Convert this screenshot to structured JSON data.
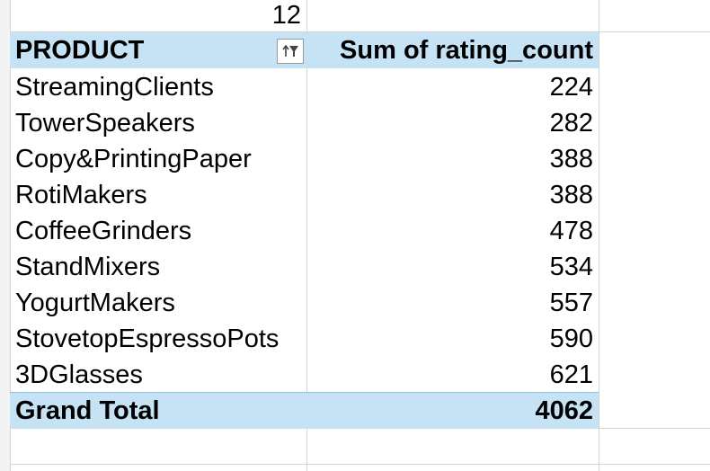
{
  "top_cell_value": "12",
  "pivot": {
    "header": {
      "row_label": "PRODUCT",
      "value_label": "Sum of rating_count",
      "filter_icon": "sort-filter-icon"
    },
    "rows": [
      {
        "product": "StreamingClients",
        "value": "224"
      },
      {
        "product": "TowerSpeakers",
        "value": "282"
      },
      {
        "product": "Copy&PrintingPaper",
        "value": "388"
      },
      {
        "product": "RotiMakers",
        "value": "388"
      },
      {
        "product": "CoffeeGrinders",
        "value": "478"
      },
      {
        "product": "StandMixers",
        "value": "534"
      },
      {
        "product": "YogurtMakers",
        "value": "557"
      },
      {
        "product": "StovetopEspressoPots",
        "value": "590"
      },
      {
        "product": "3DGlasses",
        "value": "621"
      }
    ],
    "total": {
      "label": "Grand Total",
      "value": "4062"
    }
  },
  "colors": {
    "header_fill": "#c5e3f5",
    "gridline": "#d4d4d4"
  }
}
